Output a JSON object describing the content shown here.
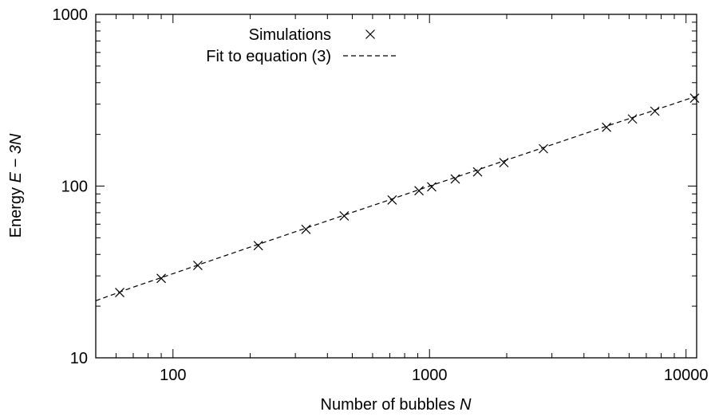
{
  "chart_data": {
    "type": "scatter",
    "xscale": "log",
    "yscale": "log",
    "xlim": [
      50,
      11000
    ],
    "ylim": [
      10,
      1000
    ],
    "xticks": [
      100,
      1000,
      10000
    ],
    "xtick_labels": [
      "100",
      "1000",
      "10000"
    ],
    "yticks": [
      10,
      100,
      1000
    ],
    "ytick_labels": [
      "10",
      "100",
      "1000"
    ],
    "xlabel": "Number of bubbles",
    "xlabel_var": "N",
    "ylabel": "Energy",
    "ylabel_expr": "E − 3N",
    "grid": false,
    "legend_position": "top-left",
    "series": [
      {
        "name": "Simulations",
        "marker": "x",
        "color": "#000000",
        "x": [
          62,
          90,
          125,
          215,
          330,
          465,
          715,
          910,
          1020,
          1260,
          1540,
          1950,
          2780,
          4900,
          6180,
          7560,
          10800
        ],
        "y": [
          24,
          29,
          34.5,
          45,
          56,
          67,
          83,
          94,
          99,
          110,
          121,
          137,
          165,
          220,
          246,
          273,
          325
        ]
      },
      {
        "name": "Fit to equation (3)",
        "style": "dashed",
        "color": "#000000",
        "x": [
          50,
          70,
          100,
          150,
          200,
          300,
          500,
          700,
          1000,
          1500,
          2000,
          3000,
          5000,
          7000,
          10000,
          11000
        ],
        "y": [
          21.5,
          25.8,
          30.9,
          38.1,
          44.1,
          54.2,
          70.3,
          83.2,
          100.0,
          122.7,
          141.9,
          174.2,
          225.4,
          266.6,
          318.3,
          333.5
        ]
      }
    ]
  }
}
